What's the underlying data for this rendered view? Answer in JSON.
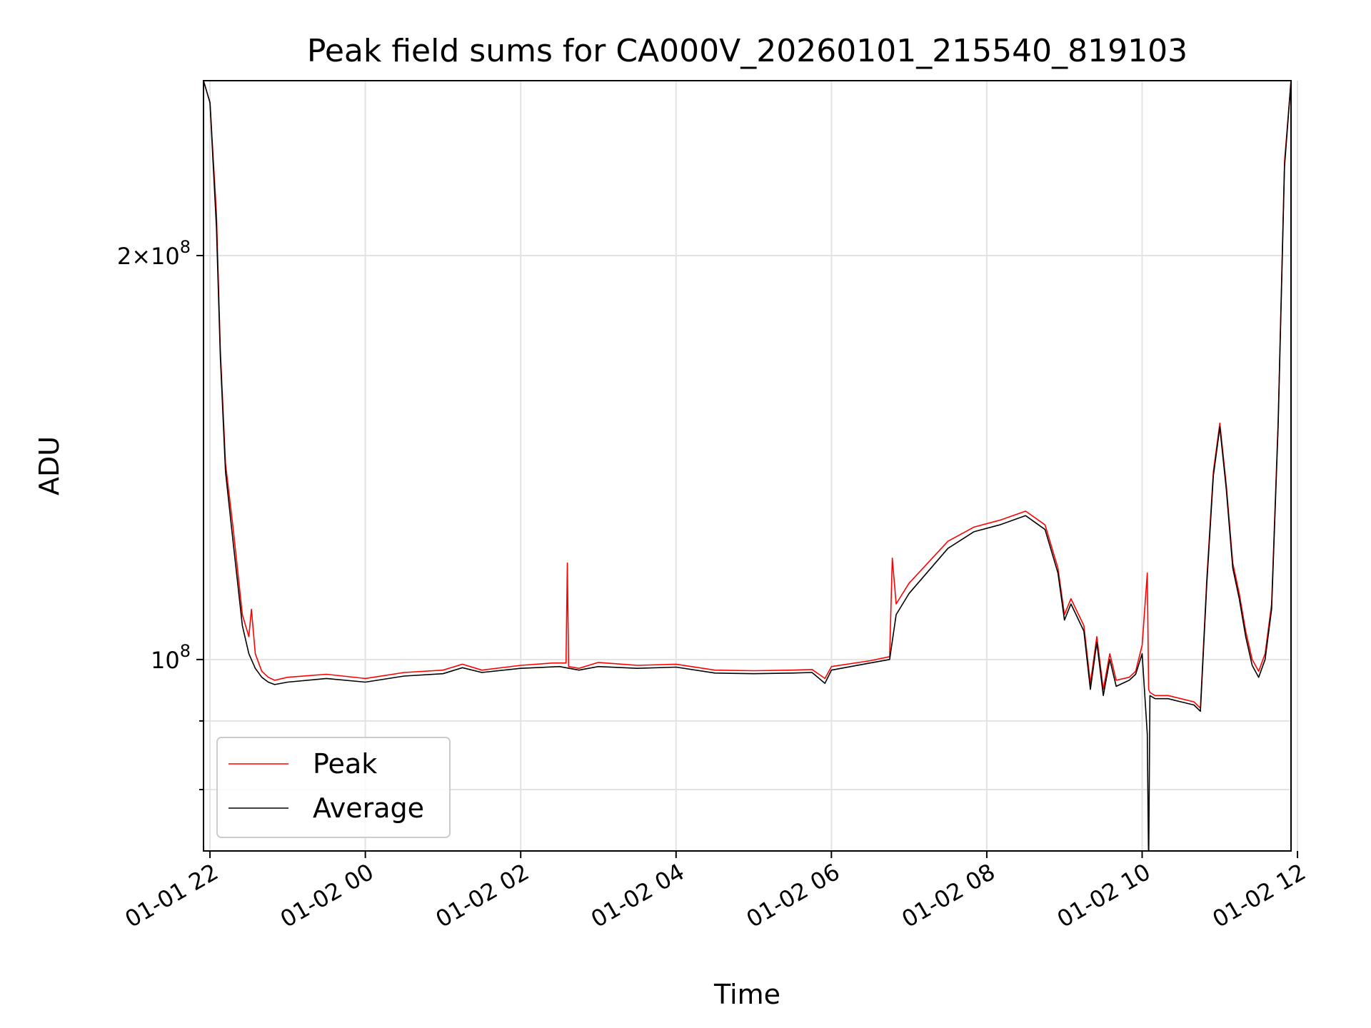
{
  "chart_data": {
    "type": "line",
    "title": "Peak field sums for CA000V_20260101_215540_819103",
    "xlabel": "Time",
    "ylabel": "ADU",
    "yscale": "log",
    "grid": true,
    "legend_position": "lower-left",
    "xlim": [
      "2026-01-01 21:55",
      "2026-01-02 11:55"
    ],
    "ylim": [
      72000000,
      270000000
    ],
    "x_ticks": [
      "01-01 22",
      "01-02 00",
      "01-02 02",
      "01-02 04",
      "01-02 06",
      "01-02 08",
      "01-02 10",
      "01-02 12"
    ],
    "y_ticks": [
      "2×10^8",
      "10^8"
    ],
    "y_tick_values": [
      200000000,
      100000000
    ],
    "y_minor_tick_values": [
      90000000,
      80000000
    ],
    "colors": {
      "Peak": "#ff0000",
      "Average": "#000000"
    },
    "series": [
      {
        "name": "Peak",
        "x": [
          "2026-01-01 21:55",
          "2026-01-01 22:00",
          "2026-01-01 22:05",
          "2026-01-01 22:08",
          "2026-01-01 22:12",
          "2026-01-01 22:18",
          "2026-01-01 22:25",
          "2026-01-01 22:30",
          "2026-01-01 22:32",
          "2026-01-01 22:35",
          "2026-01-01 22:40",
          "2026-01-01 22:45",
          "2026-01-01 22:50",
          "2026-01-01 23:00",
          "2026-01-01 23:30",
          "2026-01-02 00:00",
          "2026-01-02 00:30",
          "2026-01-02 01:00",
          "2026-01-02 01:15",
          "2026-01-02 01:30",
          "2026-01-02 02:00",
          "2026-01-02 02:25",
          "2026-01-02 02:35",
          "2026-01-02 02:36",
          "2026-01-02 02:37",
          "2026-01-02 02:45",
          "2026-01-02 03:00",
          "2026-01-02 03:30",
          "2026-01-02 04:00",
          "2026-01-02 04:30",
          "2026-01-02 05:00",
          "2026-01-02 05:30",
          "2026-01-02 05:45",
          "2026-01-02 05:55",
          "2026-01-02 06:00",
          "2026-01-02 06:30",
          "2026-01-02 06:45",
          "2026-01-02 06:47",
          "2026-01-02 06:50",
          "2026-01-02 07:00",
          "2026-01-02 07:30",
          "2026-01-02 07:50",
          "2026-01-02 08:10",
          "2026-01-02 08:30",
          "2026-01-02 08:45",
          "2026-01-02 08:55",
          "2026-01-02 09:00",
          "2026-01-02 09:05",
          "2026-01-02 09:15",
          "2026-01-02 09:20",
          "2026-01-02 09:25",
          "2026-01-02 09:30",
          "2026-01-02 09:35",
          "2026-01-02 09:40",
          "2026-01-02 09:50",
          "2026-01-02 09:55",
          "2026-01-02 10:00",
          "2026-01-02 10:04",
          "2026-01-02 10:05",
          "2026-01-02 10:06",
          "2026-01-02 10:10",
          "2026-01-02 10:20",
          "2026-01-02 10:30",
          "2026-01-02 10:40",
          "2026-01-02 10:45",
          "2026-01-02 10:50",
          "2026-01-02 10:55",
          "2026-01-02 11:00",
          "2026-01-02 11:05",
          "2026-01-02 11:10",
          "2026-01-02 11:15",
          "2026-01-02 11:20",
          "2026-01-02 11:25",
          "2026-01-02 11:30",
          "2026-01-02 11:35",
          "2026-01-02 11:40",
          "2026-01-02 11:45",
          "2026-01-02 11:50",
          "2026-01-02 11:55"
        ],
        "y": [
          270000000,
          260000000,
          215000000,
          170000000,
          140000000,
          125000000,
          108000000,
          104000000,
          109000000,
          101000000,
          98000000,
          97000000,
          96500000,
          97000000,
          97500000,
          96800000,
          97800000,
          98200000,
          99200000,
          98200000,
          99000000,
          99400000,
          99400000,
          118000000,
          98800000,
          98500000,
          99500000,
          99000000,
          99200000,
          98200000,
          98100000,
          98200000,
          98300000,
          96800000,
          98800000,
          99800000,
          100500000,
          119000000,
          110000000,
          114000000,
          122500000,
          125500000,
          127000000,
          129000000,
          126000000,
          117000000,
          108000000,
          111000000,
          106000000,
          96000000,
          104000000,
          95000000,
          101000000,
          96500000,
          97000000,
          98000000,
          102500000,
          116000000,
          95000000,
          94500000,
          94000000,
          94000000,
          93500000,
          93000000,
          92000000,
          115000000,
          138000000,
          150000000,
          135000000,
          118000000,
          112000000,
          105000000,
          100000000,
          98000000,
          101000000,
          110000000,
          150000000,
          235000000,
          270000000
        ]
      },
      {
        "name": "Average",
        "x": [
          "2026-01-01 21:55",
          "2026-01-01 22:00",
          "2026-01-01 22:05",
          "2026-01-01 22:08",
          "2026-01-01 22:12",
          "2026-01-01 22:18",
          "2026-01-01 22:25",
          "2026-01-01 22:30",
          "2026-01-01 22:35",
          "2026-01-01 22:40",
          "2026-01-01 22:45",
          "2026-01-01 22:50",
          "2026-01-01 23:00",
          "2026-01-01 23:30",
          "2026-01-02 00:00",
          "2026-01-02 00:30",
          "2026-01-02 01:00",
          "2026-01-02 01:15",
          "2026-01-02 01:30",
          "2026-01-02 02:00",
          "2026-01-02 02:30",
          "2026-01-02 02:45",
          "2026-01-02 03:00",
          "2026-01-02 03:30",
          "2026-01-02 04:00",
          "2026-01-02 04:30",
          "2026-01-02 05:00",
          "2026-01-02 05:30",
          "2026-01-02 05:45",
          "2026-01-02 05:55",
          "2026-01-02 06:00",
          "2026-01-02 06:30",
          "2026-01-02 06:45",
          "2026-01-02 06:50",
          "2026-01-02 07:00",
          "2026-01-02 07:30",
          "2026-01-02 07:50",
          "2026-01-02 08:10",
          "2026-01-02 08:30",
          "2026-01-02 08:45",
          "2026-01-02 08:55",
          "2026-01-02 09:00",
          "2026-01-02 09:05",
          "2026-01-02 09:15",
          "2026-01-02 09:20",
          "2026-01-02 09:25",
          "2026-01-02 09:30",
          "2026-01-02 09:35",
          "2026-01-02 09:40",
          "2026-01-02 09:50",
          "2026-01-02 09:55",
          "2026-01-02 10:00",
          "2026-01-02 10:04",
          "2026-01-02 10:05",
          "2026-01-02 10:06",
          "2026-01-02 10:10",
          "2026-01-02 10:20",
          "2026-01-02 10:30",
          "2026-01-02 10:40",
          "2026-01-02 10:45",
          "2026-01-02 10:50",
          "2026-01-02 10:55",
          "2026-01-02 11:00",
          "2026-01-02 11:05",
          "2026-01-02 11:10",
          "2026-01-02 11:15",
          "2026-01-02 11:20",
          "2026-01-02 11:25",
          "2026-01-02 11:30",
          "2026-01-02 11:35",
          "2026-01-02 11:40",
          "2026-01-02 11:45",
          "2026-01-02 11:50",
          "2026-01-02 11:55"
        ],
        "y": [
          270000000,
          260000000,
          210000000,
          168000000,
          138000000,
          122000000,
          106000000,
          101000000,
          98500000,
          97000000,
          96200000,
          95800000,
          96200000,
          96800000,
          96200000,
          97200000,
          97600000,
          98600000,
          97800000,
          98500000,
          98800000,
          98200000,
          98800000,
          98500000,
          98700000,
          97700000,
          97600000,
          97700000,
          97800000,
          96000000,
          98200000,
          99400000,
          100000000,
          108000000,
          112000000,
          121000000,
          124500000,
          126000000,
          128000000,
          125000000,
          116000000,
          107000000,
          110000000,
          105000000,
          95000000,
          103000000,
          94000000,
          100000000,
          95500000,
          96500000,
          97500000,
          101000000,
          88000000,
          70000000,
          94000000,
          93500000,
          93500000,
          93000000,
          92500000,
          91500000,
          114000000,
          137000000,
          149000000,
          134000000,
          117000000,
          111000000,
          104000000,
          99000000,
          97000000,
          100000000,
          109000000,
          149000000,
          233000000,
          270000000
        ]
      }
    ]
  }
}
